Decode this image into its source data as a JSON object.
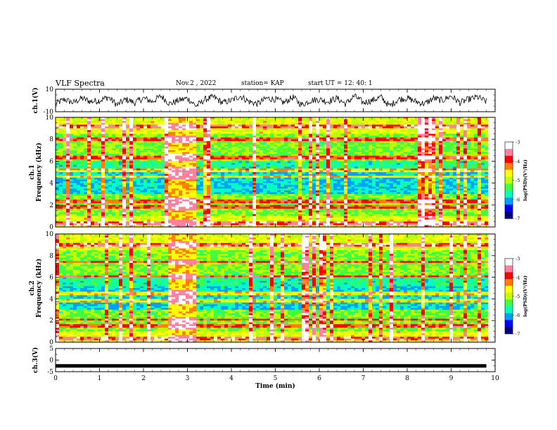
{
  "header": {
    "title": "VLF Spectra",
    "date": "Nov.2 , 2022",
    "station": "station= KAP",
    "start": "start UT = 12: 40: 1"
  },
  "chart_data": [
    {
      "type": "line",
      "id": "ch1-waveform",
      "ylabel": "ch.1(V)",
      "ylim": [
        -10,
        10
      ],
      "yticks": [
        10,
        -10
      ],
      "x": [
        0.0,
        0.2,
        0.4,
        0.6,
        0.8,
        1.0,
        1.2,
        1.4,
        1.6,
        1.8,
        2.0,
        2.2,
        2.4,
        2.6,
        2.8,
        3.0,
        3.2,
        3.4,
        3.6,
        3.8,
        4.0,
        4.2,
        4.4,
        4.6,
        4.8,
        5.0,
        5.2,
        5.4,
        5.6,
        5.8,
        6.0,
        6.2,
        6.4,
        6.6,
        6.8,
        7.0,
        7.2,
        7.4,
        7.6,
        7.8,
        8.0,
        8.2,
        8.4,
        8.6,
        8.8,
        9.0,
        9.2,
        9.4,
        9.6,
        9.8
      ],
      "y": [
        -3,
        1,
        -2,
        2,
        -1,
        0,
        3,
        -4,
        1,
        -2,
        2,
        -1,
        4,
        -3,
        0,
        2,
        -5,
        1,
        3,
        -2,
        0,
        4,
        -1,
        -3,
        2,
        1,
        -2,
        3,
        -4,
        0,
        1,
        -1,
        2,
        -3,
        4,
        -2,
        0,
        3,
        -5,
        1,
        2,
        -1,
        -3,
        2,
        0,
        4,
        -2,
        1,
        3,
        -1
      ]
    },
    {
      "type": "heatmap",
      "id": "ch1-spectrogram",
      "ylabel": "ch.1\nFrequency (kHz)",
      "ylim": [
        0,
        10
      ],
      "yticks": [
        0,
        2,
        4,
        6,
        8,
        10
      ],
      "colorbar": {
        "label": "log(PSD)(V²/Hz)",
        "range": [
          -7,
          -3
        ],
        "ticks": [
          -3,
          -4,
          -5,
          -6,
          -7
        ]
      },
      "features": {
        "burst_time_min": [
          2.55,
          3.2
        ],
        "strong_lines_khz": [
          0.3,
          1.8,
          2.3,
          4.6,
          5.2,
          6.3,
          8.0,
          9.2
        ]
      }
    },
    {
      "type": "heatmap",
      "id": "ch2-spectrogram",
      "ylabel": "ch.2\nFrequency (kHz)",
      "ylim": [
        0,
        10
      ],
      "yticks": [
        0,
        2,
        4,
        6,
        8,
        10
      ],
      "colorbar": {
        "label": "log(PSD)(V²/Hz)",
        "range": [
          -7,
          -3
        ],
        "ticks": [
          -3,
          -4,
          -5,
          -6,
          -7
        ]
      },
      "features": {
        "burst_time_min": [
          2.55,
          3.2
        ],
        "strong_lines_khz": [
          0.3,
          1.5,
          2.1,
          3.8,
          4.5,
          6.1,
          7.4,
          9.0
        ]
      }
    },
    {
      "type": "line",
      "id": "ch3-waveform",
      "ylabel": "ch.3(V)",
      "ylim": [
        -5,
        5
      ],
      "yticks": [
        5,
        0,
        -5
      ],
      "x": [
        0.0,
        9.8
      ],
      "y": [
        -2.5,
        -2.5
      ]
    }
  ],
  "xaxis": {
    "label": "Time (min)",
    "ticks": [
      0,
      1,
      2,
      3,
      4,
      5,
      6,
      7,
      8,
      9,
      10
    ],
    "range": [
      0,
      10
    ]
  },
  "colors": {
    "colormap": [
      "#000080",
      "#0000ff",
      "#00a0ff",
      "#00ffc0",
      "#40ff40",
      "#c0ff00",
      "#ffff00",
      "#ff8000",
      "#ff0000",
      "#ff80a0",
      "#ffffff"
    ]
  }
}
